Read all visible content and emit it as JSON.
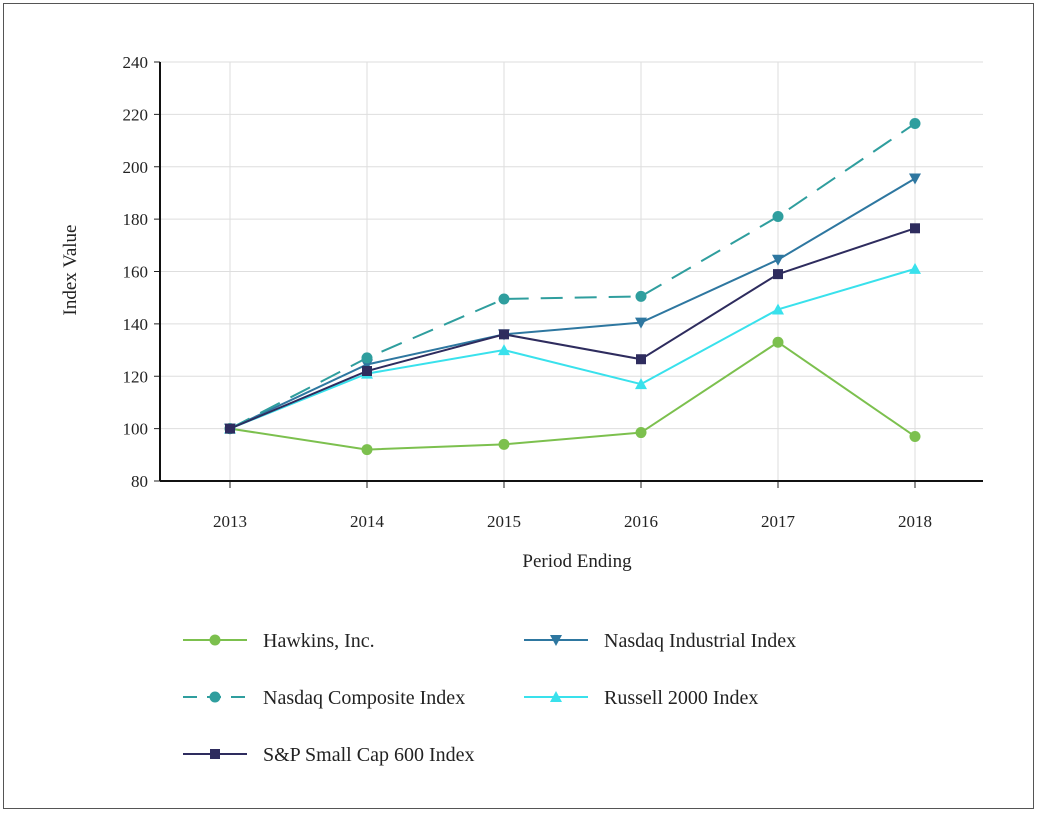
{
  "chart_data": {
    "type": "line",
    "xlabel": "Period Ending",
    "ylabel": "Index Value",
    "categories": [
      "2013",
      "2014",
      "2015",
      "2016",
      "2017",
      "2018"
    ],
    "ylim": [
      80,
      240
    ],
    "yticks": [
      80,
      100,
      120,
      140,
      160,
      180,
      200,
      220,
      240
    ],
    "grid": true,
    "legend_position": "bottom",
    "series": [
      {
        "name": "Hawkins, Inc.",
        "values": [
          100,
          92,
          94,
          98.5,
          133,
          97
        ],
        "color": "#7cc04e",
        "marker": "circle",
        "dashed": false
      },
      {
        "name": "Nasdaq Industrial Index",
        "values": [
          100,
          124.5,
          136,
          140.5,
          164.5,
          195.5
        ],
        "color": "#2e77a0",
        "marker": "triangle-down",
        "dashed": false
      },
      {
        "name": "Nasdaq Composite Index",
        "values": [
          100,
          127,
          149.5,
          150.5,
          181,
          216.5
        ],
        "color": "#2f9e9e",
        "marker": "circle",
        "dashed": true
      },
      {
        "name": "Russell 2000 Index",
        "values": [
          100,
          121,
          130,
          117,
          145.5,
          161
        ],
        "color": "#39e1ec",
        "marker": "triangle-up",
        "dashed": false
      },
      {
        "name": "S&P Small Cap 600 Index",
        "values": [
          100,
          122,
          136,
          126.5,
          159,
          176.5
        ],
        "color": "#2e2c5e",
        "marker": "square",
        "dashed": false
      }
    ]
  }
}
